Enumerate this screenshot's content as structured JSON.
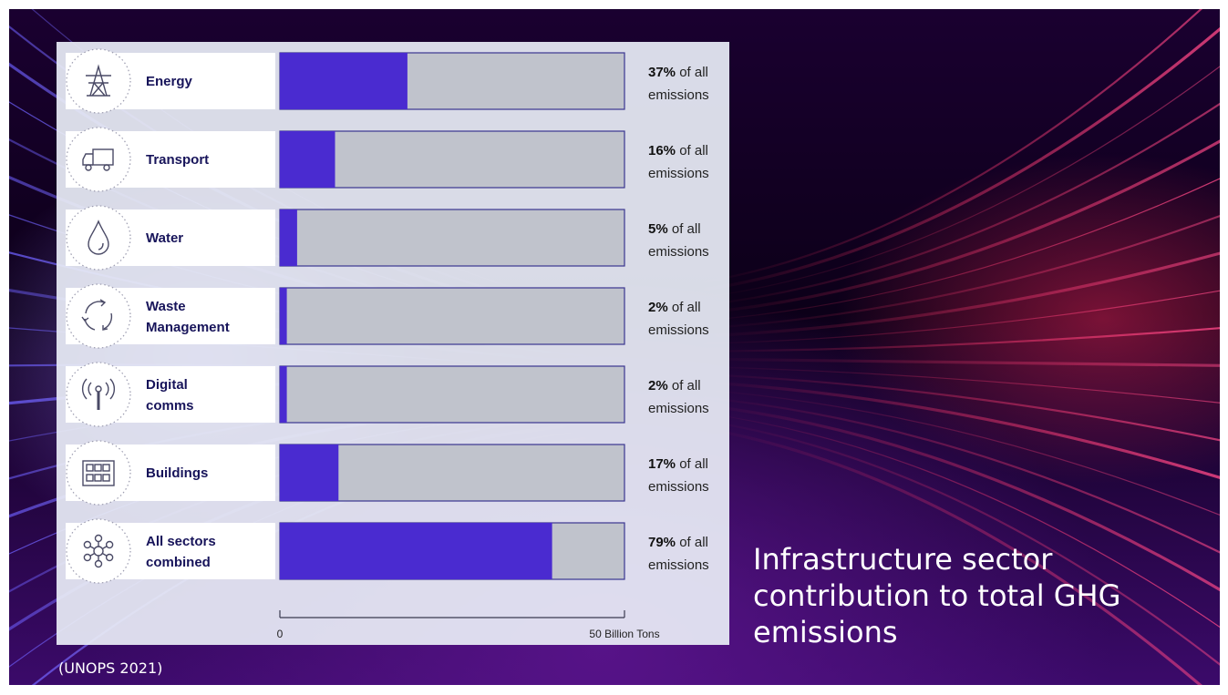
{
  "title": "Infrastructure sector contribution to total GHG emissions",
  "source": "(UNOPS 2021)",
  "colors": {
    "bar_fill": "#4a2bd0",
    "bar_track": "#c0c3cc",
    "bar_border": "#3a3590",
    "label_bg": "#ffffff",
    "sector_text": "#17145a"
  },
  "chart_data": {
    "type": "bar",
    "orientation": "horizontal",
    "categories": [
      [
        "Energy"
      ],
      [
        "Transport"
      ],
      [
        "Water"
      ],
      [
        "Waste",
        "Management"
      ],
      [
        "Digital",
        "comms"
      ],
      [
        "Buildings"
      ],
      [
        "All sectors",
        "combined"
      ]
    ],
    "icons": [
      "power-tower-icon",
      "truck-icon",
      "water-drop-icon",
      "recycle-icon",
      "antenna-icon",
      "building-icon",
      "network-icon"
    ],
    "values": [
      37,
      16,
      5,
      2,
      2,
      17,
      79
    ],
    "value_labels": [
      {
        "strong": "37%",
        "rest": " of all",
        "line2": "emissions"
      },
      {
        "strong": "16%",
        "rest": " of all",
        "line2": "emissions"
      },
      {
        "strong": "5%",
        "rest": " of all",
        "line2": "emissions"
      },
      {
        "strong": "2%",
        "rest": " of all",
        "line2": "emissions"
      },
      {
        "strong": "2%",
        "rest": " of all",
        "line2": "emissions"
      },
      {
        "strong": "17%",
        "rest": " of all",
        "line2": "emissions"
      },
      {
        "strong": "79%",
        "rest": " of all",
        "line2": "emissions"
      }
    ],
    "unit": "%",
    "xlim": [
      0,
      100
    ],
    "axis": {
      "start_label": "0",
      "end_label": "50 Billion Tons"
    }
  }
}
